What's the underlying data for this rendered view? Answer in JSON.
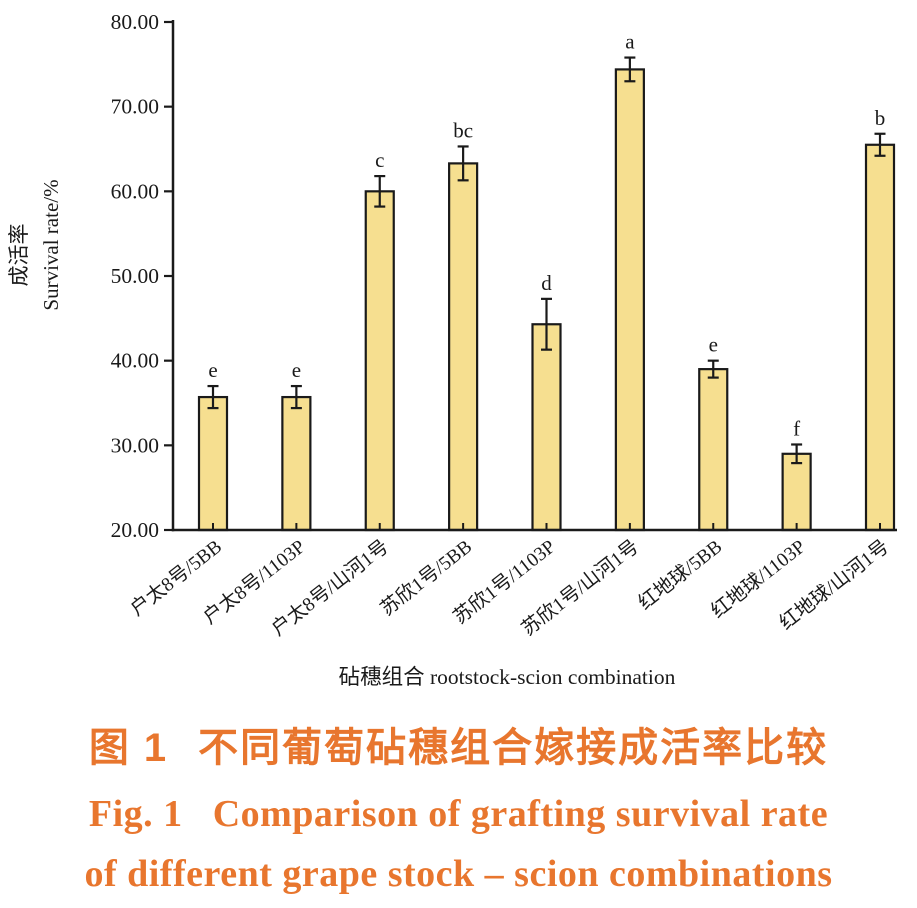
{
  "chart_data": {
    "type": "bar",
    "title": "",
    "categories": [
      "户太8号/5BB",
      "户太8号/1103P",
      "户太8号/山河1号",
      "苏欣1号/5BB",
      "苏欣1号/1103P",
      "苏欣1号/山河1号",
      "红地球/5BB",
      "红地球/1103P",
      "红地球/山河1号"
    ],
    "values": [
      35.7,
      35.7,
      60.0,
      63.3,
      44.3,
      74.4,
      39.0,
      29.0,
      65.5
    ],
    "errors": [
      1.3,
      1.3,
      1.8,
      2.0,
      3.0,
      1.4,
      1.0,
      1.1,
      1.3
    ],
    "sig_letters": [
      "e",
      "e",
      "c",
      "bc",
      "d",
      "a",
      "e",
      "f",
      "b"
    ],
    "ylabel_zh": "成活率",
    "ylabel_en": "Survival rate/%",
    "xlabel": "砧穗组合 rootstock-scion combination",
    "ylim": [
      20,
      80
    ],
    "yticks": [
      "20.00",
      "30.00",
      "40.00",
      "50.00",
      "60.00",
      "70.00",
      "80.00"
    ],
    "grid": false,
    "legend": null,
    "bar_fill_color": "#f6df90",
    "bar_border_color": "#1a1a1a",
    "axis_color": "#1a1a1a",
    "text_color": "#1a1a1a"
  },
  "caption": {
    "zh_label": "图 1",
    "zh_text": "不同葡萄砧穗组合嫁接成活率比较",
    "en_label": "Fig. 1",
    "en_text_line1": "Comparison of grafting survival rate",
    "en_text_line2": "of different grape stock – scion combinations",
    "color": "#e8762e"
  }
}
